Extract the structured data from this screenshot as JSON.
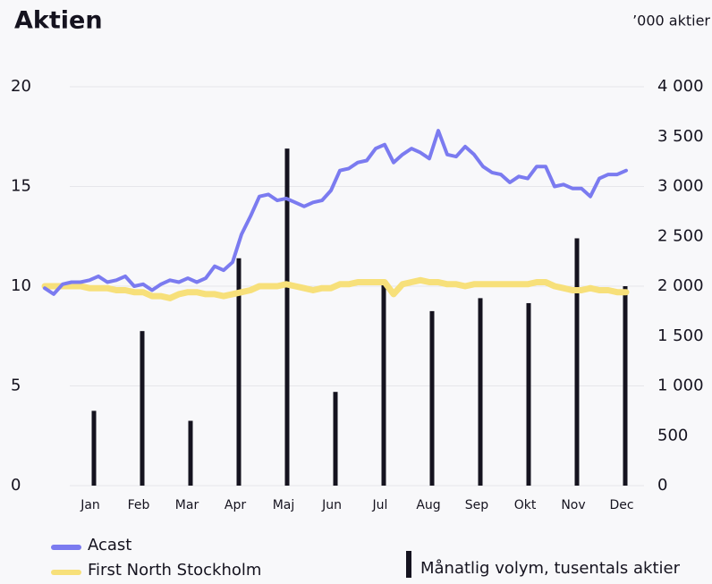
{
  "header": {
    "title": "Aktien",
    "unit": "’000 aktier"
  },
  "chart_data": [
    {
      "type": "line",
      "ylim": [
        0,
        20
      ],
      "yticks": [
        0,
        5,
        10,
        15,
        20
      ],
      "grid": true,
      "series": [
        {
          "name": "Acast",
          "color": "#7b7bf0",
          "values": [
            9.9,
            9.6,
            10.1,
            10.2,
            10.2,
            10.3,
            10.5,
            10.2,
            10.3,
            10.5,
            10.0,
            10.1,
            9.8,
            10.1,
            10.3,
            10.2,
            10.4,
            10.2,
            10.4,
            11.0,
            10.8,
            11.2,
            12.6,
            13.5,
            14.5,
            14.6,
            14.3,
            14.4,
            14.2,
            14.0,
            14.2,
            14.3,
            14.8,
            15.8,
            15.9,
            16.2,
            16.3,
            16.9,
            17.1,
            16.2,
            16.6,
            16.9,
            16.7,
            16.4,
            17.8,
            16.6,
            16.5,
            17.0,
            16.6,
            16.0,
            15.7,
            15.6,
            15.2,
            15.5,
            15.4,
            16.0,
            16.0,
            15.0,
            15.1,
            14.9,
            14.9,
            14.5,
            15.4,
            15.6,
            15.6,
            15.8
          ]
        },
        {
          "name": "First North Stockholm",
          "color": "#f7e07a",
          "values": [
            10.0,
            10.0,
            10.0,
            10.0,
            10.0,
            9.9,
            9.9,
            9.9,
            9.8,
            9.8,
            9.7,
            9.7,
            9.5,
            9.5,
            9.4,
            9.6,
            9.7,
            9.7,
            9.6,
            9.6,
            9.5,
            9.6,
            9.7,
            9.8,
            10.0,
            10.0,
            10.0,
            10.1,
            10.0,
            9.9,
            9.8,
            9.9,
            9.9,
            10.1,
            10.1,
            10.2,
            10.2,
            10.2,
            10.2,
            9.6,
            10.1,
            10.2,
            10.3,
            10.2,
            10.2,
            10.1,
            10.1,
            10.0,
            10.1,
            10.1,
            10.1,
            10.1,
            10.1,
            10.1,
            10.1,
            10.2,
            10.2,
            10.0,
            9.9,
            9.8,
            9.8,
            9.9,
            9.8,
            9.8,
            9.7,
            9.7
          ]
        }
      ]
    },
    {
      "type": "bar",
      "name": "Månatlig volym, tusentals aktier",
      "color": "#15131f",
      "categories": [
        "Jan",
        "Feb",
        "Mar",
        "Apr",
        "Maj",
        "Jun",
        "Jul",
        "Aug",
        "Sep",
        "Okt",
        "Nov",
        "Dec"
      ],
      "values": [
        750,
        1550,
        650,
        2280,
        3380,
        940,
        2020,
        1750,
        1880,
        1830,
        2480,
        2000
      ],
      "y2lim": [
        0,
        4000
      ],
      "y2ticks": [
        0,
        500,
        {
          "value": 1000,
          "label": "1 000"
        },
        {
          "value": 1500,
          "label": "1 500"
        },
        {
          "value": 2000,
          "label": "2 000"
        },
        {
          "value": 2500,
          "label": "2 500"
        },
        {
          "value": 3000,
          "label": "3 000"
        },
        {
          "value": 3500,
          "label": "3 500"
        },
        {
          "value": 4000,
          "label": "4 000"
        }
      ]
    }
  ]
}
